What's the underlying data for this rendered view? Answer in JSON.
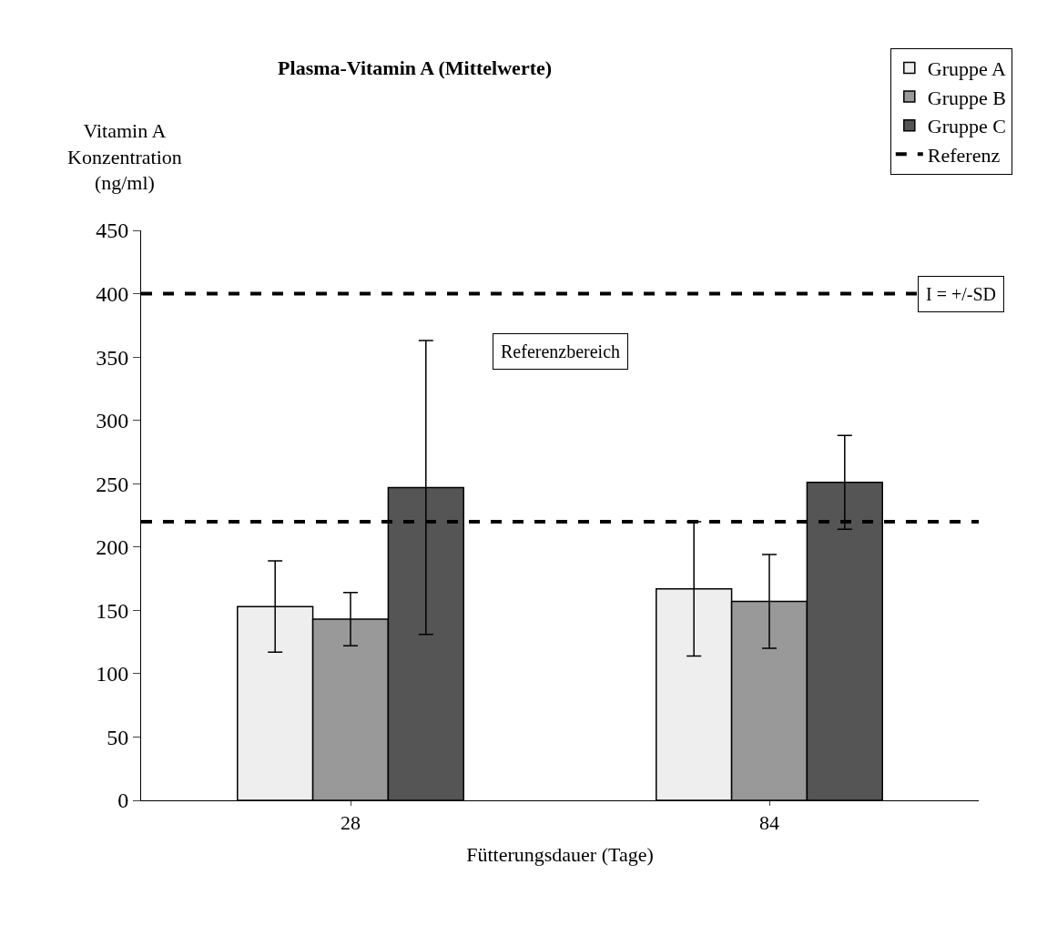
{
  "chart_data": {
    "type": "bar",
    "title": "Plasma-Vitamin A (Mittelwerte)",
    "xlabel": "Fütterungsdauer (Tage)",
    "ylabel": "Vitamin A\nKonzentration\n(ng/ml)",
    "categories": [
      "28",
      "84"
    ],
    "series": [
      {
        "name": "Gruppe A",
        "color": "#eeeeee",
        "values": [
          153,
          167
        ],
        "errors": [
          36,
          53
        ]
      },
      {
        "name": "Gruppe B",
        "color": "#999999",
        "values": [
          143,
          157
        ],
        "errors": [
          21,
          37
        ]
      },
      {
        "name": "Gruppe C",
        "color": "#555555",
        "values": [
          247,
          251
        ],
        "errors": [
          116,
          37
        ]
      }
    ],
    "ref_lines": [
      {
        "axis": "y",
        "value": 400,
        "label": "Referenz",
        "color": "#000000",
        "line_style": "dashed"
      },
      {
        "axis": "y",
        "value": 220,
        "color": "#000000",
        "line_style": "dashed"
      }
    ],
    "annotations": [
      "Referenzbereich",
      "I = +/-SD"
    ],
    "ylim": [
      0,
      450
    ],
    "yticks": [
      0,
      50,
      100,
      150,
      200,
      250,
      300,
      350,
      400,
      450
    ],
    "legend": "top right"
  }
}
